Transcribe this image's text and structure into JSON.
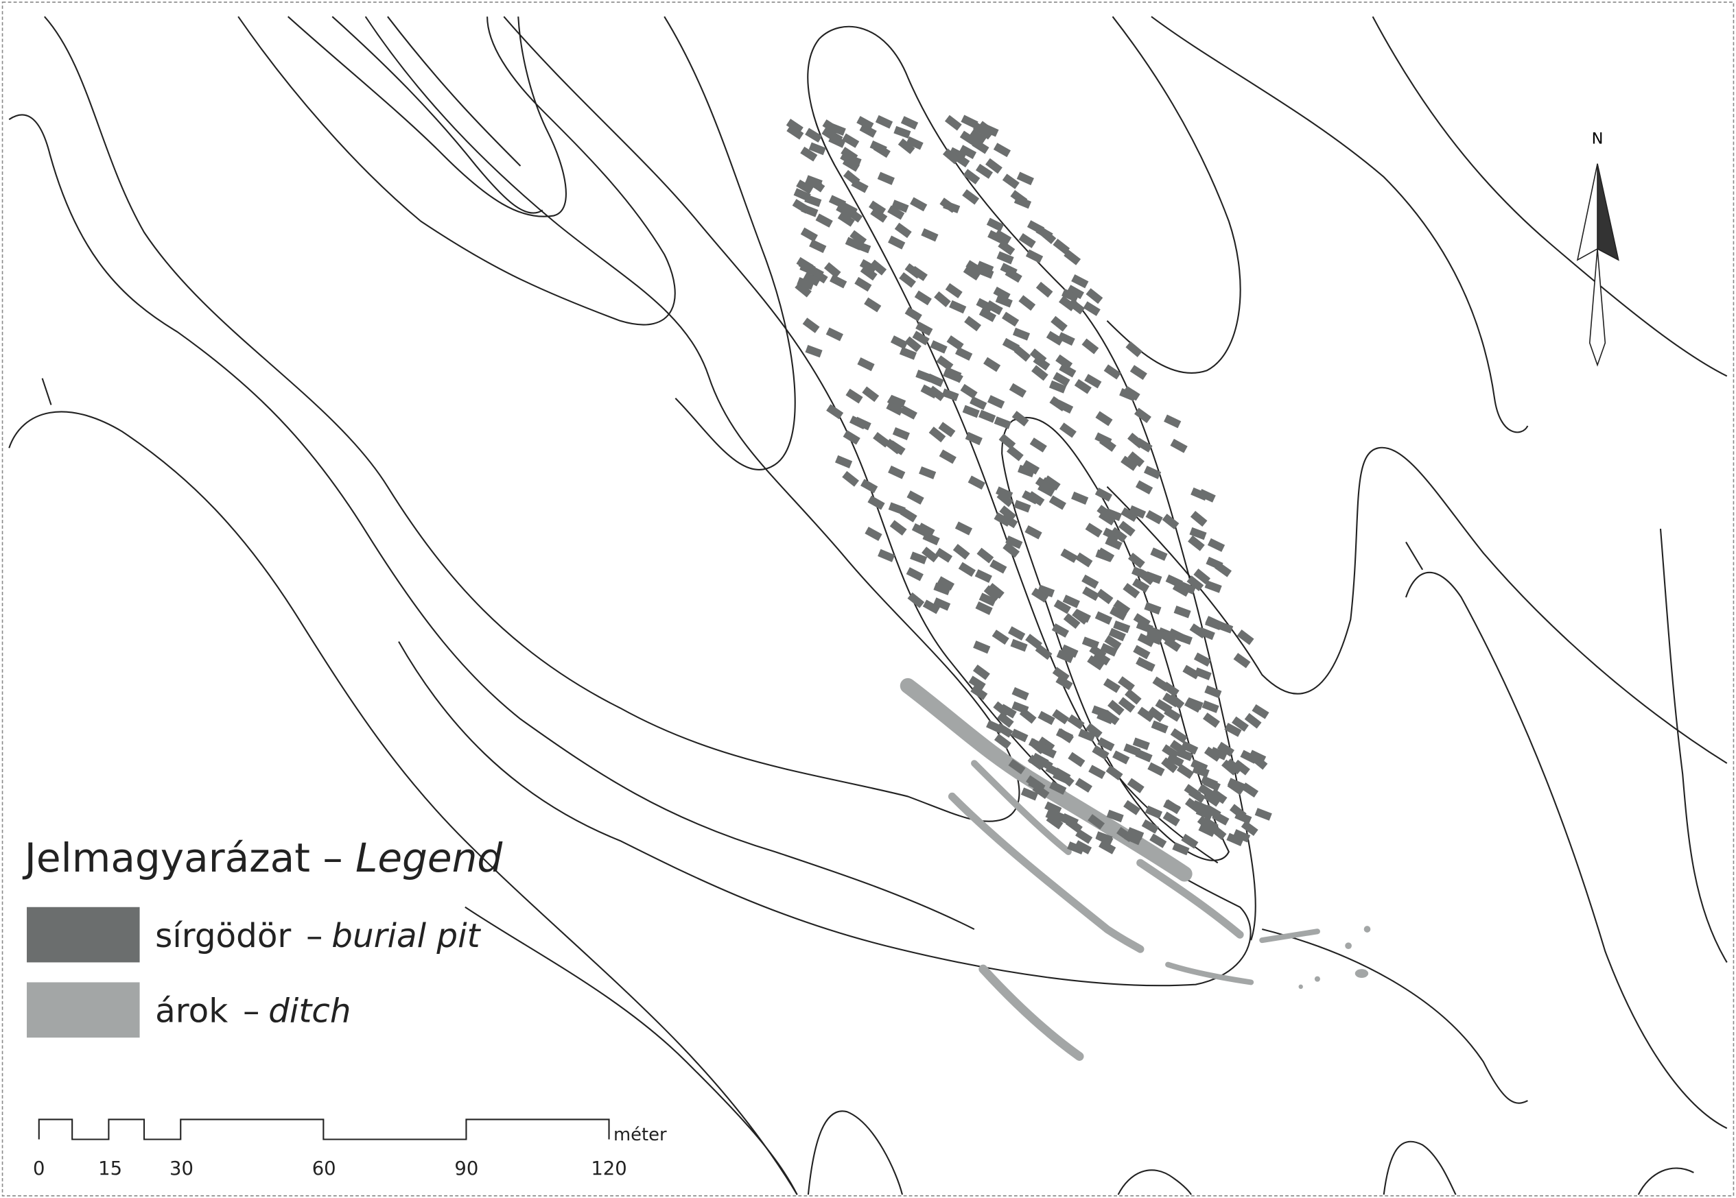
{
  "map": {
    "north_label": "N",
    "legend": {
      "title": "Jelmagyarázat",
      "separator": "–",
      "title_translation": "Legend",
      "items": [
        {
          "label": "sírgödör",
          "translation": "burial pit",
          "color": "#6b6e6e"
        },
        {
          "label": "árok",
          "translation": "ditch",
          "color": "#a3a6a6"
        }
      ]
    },
    "scale_bar": {
      "unit": "méter",
      "ticks": [
        0,
        15,
        30,
        60,
        90,
        120
      ]
    }
  }
}
